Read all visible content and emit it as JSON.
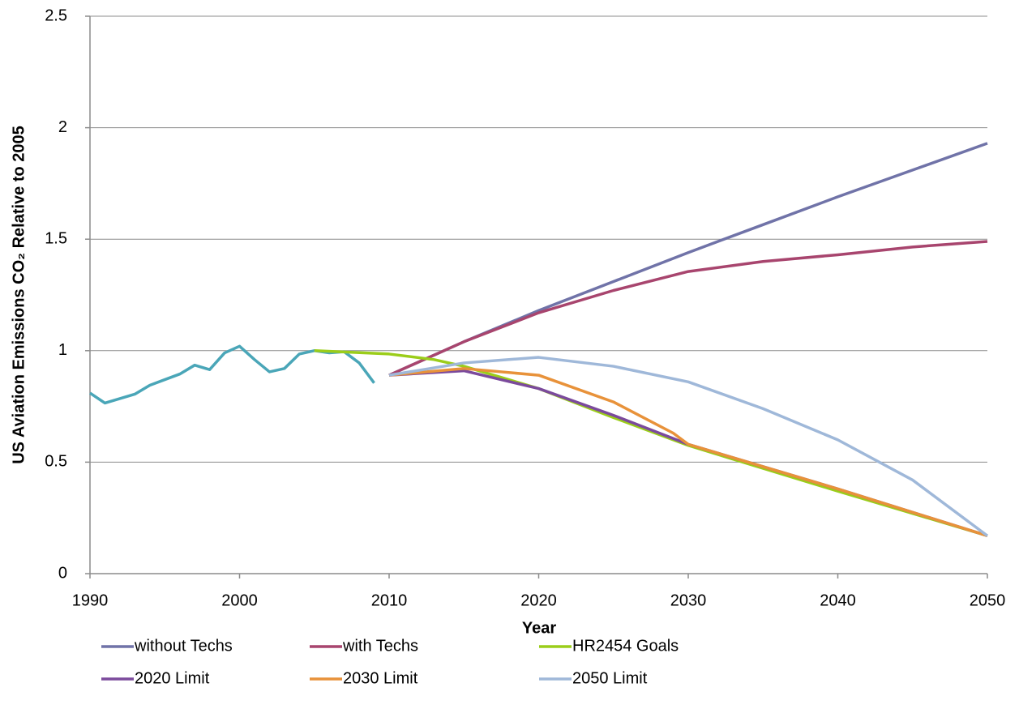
{
  "chart_data": {
    "type": "line",
    "xlabel": "Year",
    "ylabel": "US Aviation Emissions CO₂ Relative to 2005",
    "xlim": [
      1990,
      2050
    ],
    "xticks": [
      1990,
      2000,
      2010,
      2020,
      2030,
      2040,
      2050
    ],
    "ylim": [
      0,
      2.5
    ],
    "yticks": [
      0,
      0.5,
      1,
      1.5,
      2,
      2.5
    ],
    "grid": true,
    "legend": "bottom",
    "series": [
      {
        "color": "#4aa6b8",
        "x": [
          1990,
          1991,
          1992,
          1993,
          1994,
          1995,
          1996,
          1997,
          1998,
          1999,
          2000,
          2001,
          2002,
          2003,
          2004,
          2005,
          2006,
          2007,
          2008,
          2009
        ],
        "values": [
          0.81,
          0.765,
          0.785,
          0.805,
          0.845,
          0.87,
          0.895,
          0.935,
          0.915,
          0.99,
          1.02,
          0.96,
          0.905,
          0.92,
          0.985,
          1.0,
          0.99,
          0.995,
          0.945,
          0.855
        ]
      },
      {
        "name": "without Techs",
        "color": "#7073a8",
        "x": [
          2010,
          2015,
          2020,
          2025,
          2030,
          2035,
          2040,
          2045,
          2050
        ],
        "values": [
          0.89,
          1.04,
          1.18,
          1.31,
          1.44,
          1.565,
          1.69,
          1.81,
          1.93
        ]
      },
      {
        "name": "with Techs",
        "color": "#a8456e",
        "x": [
          2010,
          2015,
          2020,
          2025,
          2030,
          2035,
          2040,
          2045,
          2050
        ],
        "values": [
          0.89,
          1.04,
          1.17,
          1.27,
          1.355,
          1.4,
          1.43,
          1.465,
          1.49
        ]
      },
      {
        "name": "HR2454 Goals",
        "color": "#9bcd1a",
        "x": [
          2005,
          2010,
          2013,
          2015,
          2020,
          2025,
          2030,
          2040,
          2050
        ],
        "values": [
          1.0,
          0.985,
          0.96,
          0.93,
          0.83,
          0.7,
          0.575,
          0.37,
          0.17
        ]
      },
      {
        "name": "2020 Limit",
        "color": "#7b4a9c",
        "x": [
          2010,
          2015,
          2020,
          2025,
          2030,
          2040,
          2050
        ],
        "values": [
          0.89,
          0.91,
          0.83,
          0.71,
          0.58,
          0.38,
          0.17
        ]
      },
      {
        "name": "2030 Limit",
        "color": "#e8923a",
        "x": [
          2010,
          2015,
          2020,
          2025,
          2029,
          2030,
          2040,
          2050
        ],
        "values": [
          0.89,
          0.92,
          0.89,
          0.77,
          0.63,
          0.58,
          0.38,
          0.17
        ]
      },
      {
        "name": "2050 Limit",
        "color": "#9fb8d9",
        "x": [
          2010,
          2015,
          2020,
          2025,
          2030,
          2035,
          2040,
          2045,
          2050
        ],
        "values": [
          0.89,
          0.945,
          0.97,
          0.93,
          0.86,
          0.74,
          0.6,
          0.42,
          0.17
        ]
      }
    ]
  }
}
